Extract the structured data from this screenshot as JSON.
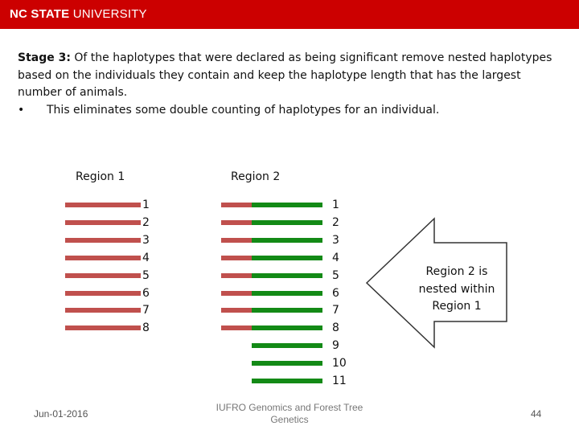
{
  "header": {
    "brand_bold": "NC STATE",
    "brand_rest": " UNIVERSITY",
    "bg_color": "#cc0000"
  },
  "stage": {
    "label": "Stage 3:",
    "text": " Of the haplotypes that were declared as being significant remove nested haplotypes based on the individuals they contain and keep the haplotype length that has the largest number of animals.",
    "bullet_symbol": "•",
    "bullet": "This eliminates some double counting of haplotypes for an individual."
  },
  "diagram": {
    "region1": {
      "label": "Region 1",
      "rows": [
        "1",
        "2",
        "3",
        "4",
        "5",
        "6",
        "7",
        "8"
      ],
      "color": "#c0504d"
    },
    "region2": {
      "label": "Region 2",
      "rows": [
        "1",
        "2",
        "3",
        "4",
        "5",
        "6",
        "7",
        "8",
        "9",
        "10",
        "11"
      ],
      "red_rows": 8,
      "red_color": "#c0504d",
      "green_color": "#138a16"
    },
    "callout": {
      "text": "Region 2 is nested within Region 1"
    }
  },
  "footer": {
    "date": "Jun-01-2016",
    "center": "IUFRO Genomics and Forest Tree Genetics",
    "page": "44"
  }
}
